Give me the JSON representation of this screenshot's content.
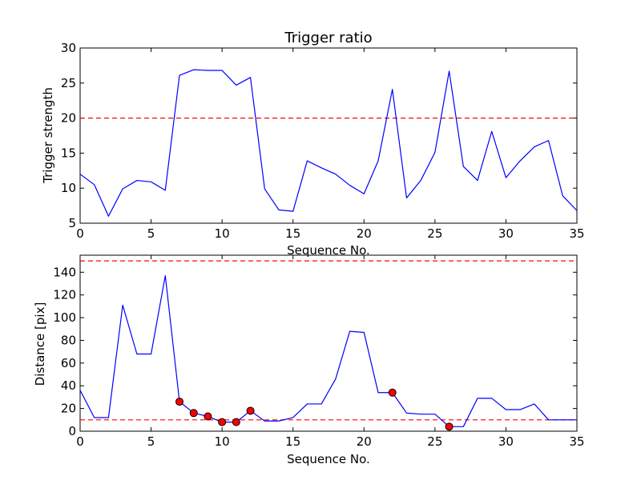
{
  "chart_data": [
    {
      "type": "line",
      "title": "Trigger ratio",
      "xlabel": "Sequence No.",
      "ylabel": "Trigger strength",
      "xlim": [
        0,
        35
      ],
      "ylim": [
        5,
        30
      ],
      "xticks": [
        0,
        5,
        10,
        15,
        20,
        25,
        30,
        35
      ],
      "yticks": [
        5,
        10,
        15,
        20,
        25,
        30
      ],
      "grid": false,
      "series": [
        {
          "color": "#0000ff",
          "x": [
            0,
            1,
            2,
            3,
            4,
            5,
            6,
            7,
            8,
            9,
            10,
            11,
            12,
            13,
            14,
            15,
            16,
            17,
            18,
            19,
            20,
            21,
            22,
            23,
            24,
            25,
            26,
            27,
            28,
            29,
            30,
            31,
            32,
            33,
            34,
            35
          ],
          "y": [
            12.0,
            10.5,
            6.0,
            9.9,
            11.1,
            10.9,
            9.7,
            26.1,
            26.9,
            26.8,
            26.8,
            24.7,
            25.8,
            9.9,
            6.9,
            6.7,
            13.9,
            12.9,
            12.0,
            10.4,
            9.2,
            13.9,
            24.1,
            8.6,
            11.1,
            15.1,
            26.7,
            13.1,
            11.1,
            18.1,
            11.5,
            13.9,
            15.9,
            16.8,
            8.9,
            6.8
          ]
        }
      ],
      "hlines": [
        {
          "y": 20,
          "color": "#ff0000",
          "style": "dashed"
        }
      ]
    },
    {
      "type": "line",
      "title": "",
      "xlabel": "Sequence No.",
      "ylabel": "Distance [pix]",
      "xlim": [
        0,
        35
      ],
      "ylim": [
        0,
        155
      ],
      "xticks": [
        0,
        5,
        10,
        15,
        20,
        25,
        30,
        35
      ],
      "yticks": [
        0,
        20,
        40,
        60,
        80,
        100,
        120,
        140
      ],
      "grid": false,
      "series": [
        {
          "color": "#0000ff",
          "x": [
            0,
            1,
            2,
            3,
            4,
            5,
            6,
            7,
            8,
            9,
            10,
            11,
            12,
            13,
            14,
            15,
            16,
            17,
            18,
            19,
            20,
            21,
            22,
            23,
            24,
            25,
            26,
            27,
            28,
            29,
            30,
            31,
            32,
            33,
            34,
            35
          ],
          "y": [
            36,
            12,
            12,
            111,
            68,
            68,
            137,
            26,
            16,
            13,
            8,
            8,
            18,
            9,
            9,
            12,
            24,
            24,
            46,
            88,
            87,
            34,
            34,
            16,
            15,
            15,
            4,
            4,
            29,
            29,
            19,
            19,
            24,
            10,
            10,
            10
          ]
        }
      ],
      "markers": {
        "color": "#ff0000",
        "x": [
          7,
          8,
          9,
          10,
          11,
          12,
          22,
          26
        ],
        "y": [
          26,
          16,
          13,
          8,
          8,
          18,
          34,
          4
        ]
      },
      "hlines": [
        {
          "y": 150,
          "color": "#ff0000",
          "style": "dashed"
        },
        {
          "y": 10,
          "color": "#ff0000",
          "style": "dashed"
        }
      ]
    }
  ]
}
